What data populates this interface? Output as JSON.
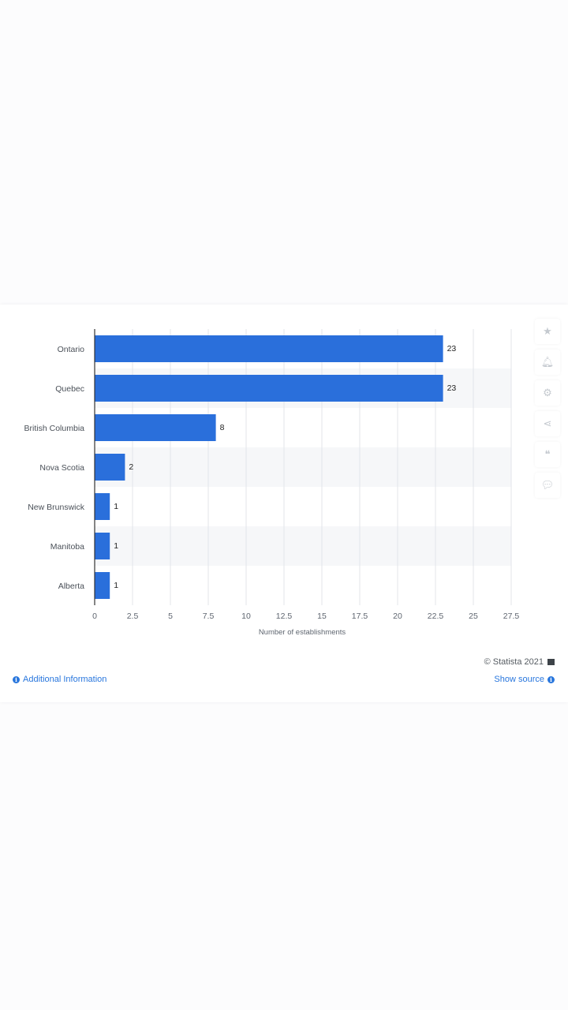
{
  "chart_data": {
    "type": "bar",
    "orientation": "horizontal",
    "categories": [
      "Ontario",
      "Quebec",
      "British Columbia",
      "Nova Scotia",
      "New Brunswick",
      "Manitoba",
      "Alberta"
    ],
    "values": [
      23,
      23,
      8,
      2,
      1,
      1,
      1
    ],
    "xlabel": "Number of establishments",
    "ylabel": "",
    "xlim": [
      0,
      27.5
    ],
    "xticks": [
      "0",
      "2.5",
      "5",
      "7.5",
      "10",
      "12.5",
      "15",
      "17.5",
      "20",
      "22.5",
      "25",
      "27.5"
    ],
    "bar_color": "#2a6fdb",
    "grid": true
  },
  "footer": {
    "copyright": "© Statista 2021",
    "additional_info": "Additional Information",
    "show_source": "Show source"
  },
  "tools": [
    "star-icon",
    "bell-icon",
    "settings-icon",
    "share-icon",
    "quote-icon",
    "comment-icon"
  ]
}
